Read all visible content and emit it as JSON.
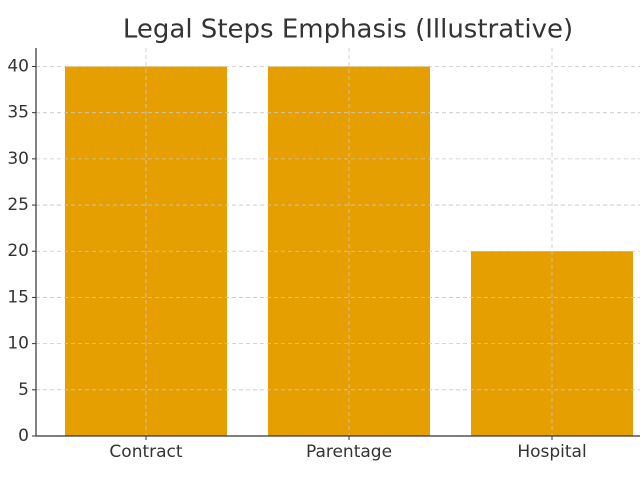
{
  "chart_data": {
    "type": "bar",
    "title": "Legal Steps Emphasis (Illustrative)",
    "categories": [
      "Contract",
      "Parentage",
      "Hospital"
    ],
    "values": [
      40,
      40,
      20
    ],
    "color": "#e69f00",
    "ylim": [
      0,
      42
    ],
    "yticks": [
      0,
      5,
      10,
      15,
      20,
      25,
      30,
      35,
      40
    ],
    "grid": true
  }
}
